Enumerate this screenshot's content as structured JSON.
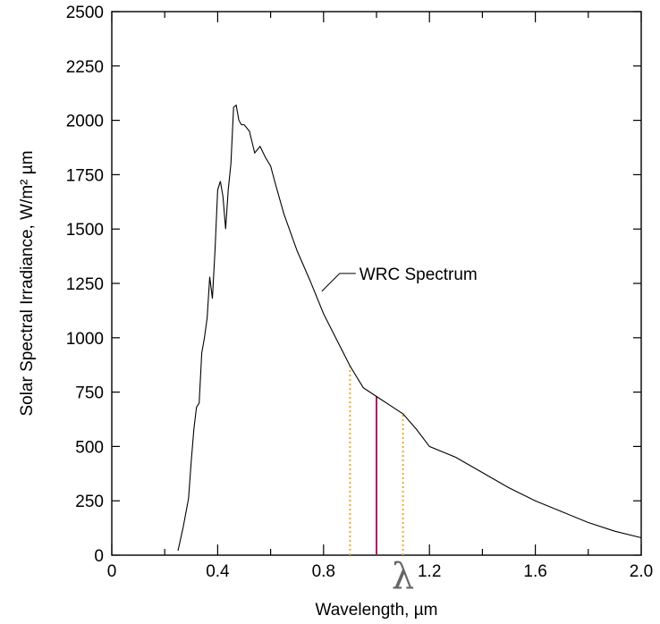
{
  "chart_data": {
    "type": "line",
    "title": "",
    "xlabel": "Wavelength, µm",
    "ylabel": "Solar Spectral Irradiance,  W/m² µm",
    "xlim": [
      0,
      2.0
    ],
    "ylim": [
      0,
      2500
    ],
    "x_ticks": [
      "0",
      "0.4",
      "0.8",
      "1.2",
      "1.6",
      "2.0"
    ],
    "y_ticks": [
      "0",
      "250",
      "500",
      "750",
      "1000",
      "1250",
      "1500",
      "1750",
      "2000",
      "2250",
      "2500"
    ],
    "grid": false,
    "series": [
      {
        "name": "WRC Spectrum",
        "x": [
          0.25,
          0.27,
          0.29,
          0.3,
          0.31,
          0.32,
          0.33,
          0.34,
          0.35,
          0.36,
          0.37,
          0.38,
          0.39,
          0.4,
          0.41,
          0.42,
          0.43,
          0.44,
          0.45,
          0.46,
          0.47,
          0.48,
          0.49,
          0.5,
          0.52,
          0.54,
          0.56,
          0.58,
          0.6,
          0.62,
          0.65,
          0.7,
          0.75,
          0.8,
          0.85,
          0.9,
          0.95,
          1.0,
          1.05,
          1.1,
          1.15,
          1.2,
          1.3,
          1.4,
          1.5,
          1.6,
          1.7,
          1.8,
          1.9,
          2.0
        ],
        "y": [
          20,
          130,
          260,
          430,
          580,
          680,
          700,
          930,
          1000,
          1090,
          1280,
          1180,
          1400,
          1680,
          1720,
          1650,
          1500,
          1680,
          1800,
          2060,
          2070,
          2000,
          1980,
          1980,
          1950,
          1850,
          1880,
          1830,
          1790,
          1700,
          1570,
          1400,
          1260,
          1110,
          990,
          870,
          770,
          730,
          690,
          650,
          580,
          500,
          450,
          380,
          310,
          250,
          200,
          150,
          110,
          80
        ]
      }
    ],
    "annotations": [
      {
        "text": "WRC Spectrum",
        "x": 0.8,
        "y": 1230
      },
      {
        "text": "λ",
        "x": 1.1,
        "y": -110
      }
    ],
    "markers": [
      {
        "style": "dotted",
        "color": "#f0a830",
        "x": 0.9
      },
      {
        "style": "solid",
        "color": "#b0146a",
        "x": 1.0
      },
      {
        "style": "dotted",
        "color": "#f0a830",
        "x": 1.1
      }
    ]
  }
}
